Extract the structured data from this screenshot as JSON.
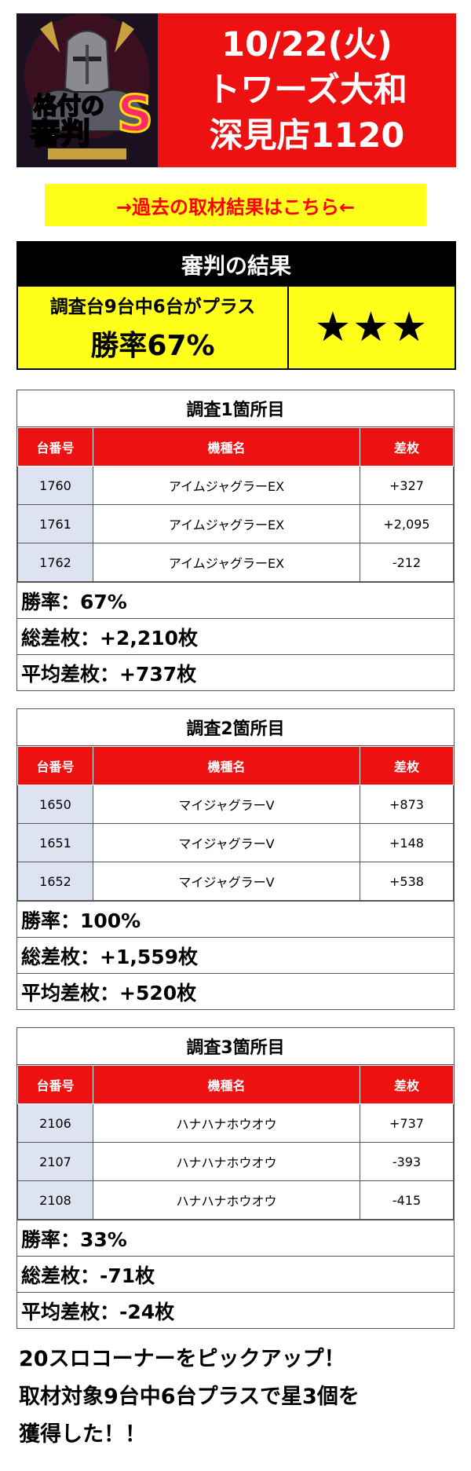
{
  "header": {
    "date": "10/22(火)",
    "store_line1": "トワーズ大和",
    "store_line2": "深見店1120",
    "logo_title_1": "格付の",
    "logo_title_2": "審判",
    "logo_letter": "S"
  },
  "past_link": "→過去の取材結果はこちら←",
  "judgement": {
    "heading": "審判の結果",
    "summary": "調査台9台中6台がプラス",
    "winrate": "勝率67%",
    "stars": "★★★"
  },
  "table_headers": {
    "num": "台番号",
    "model": "機種名",
    "diff": "差枚"
  },
  "surveys": [
    {
      "title": "調査1箇所目",
      "rows": [
        {
          "num": "1760",
          "model": "アイムジャグラーEX",
          "diff": "+327"
        },
        {
          "num": "1761",
          "model": "アイムジャグラーEX",
          "diff": "+2,095"
        },
        {
          "num": "1762",
          "model": "アイムジャグラーEX",
          "diff": "-212"
        }
      ],
      "winrate": "勝率：67%",
      "total": "総差枚：+2,210枚",
      "average": "平均差枚：+737枚"
    },
    {
      "title": "調査2箇所目",
      "rows": [
        {
          "num": "1650",
          "model": "マイジャグラーV",
          "diff": "+873"
        },
        {
          "num": "1651",
          "model": "マイジャグラーV",
          "diff": "+148"
        },
        {
          "num": "1652",
          "model": "マイジャグラーV",
          "diff": "+538"
        }
      ],
      "winrate": "勝率：100%",
      "total": "総差枚：+1,559枚",
      "average": "平均差枚：+520枚"
    },
    {
      "title": "調査3箇所目",
      "rows": [
        {
          "num": "2106",
          "model": "ハナハナホウオウ",
          "diff": "+737"
        },
        {
          "num": "2107",
          "model": "ハナハナホウオウ",
          "diff": "-393"
        },
        {
          "num": "2108",
          "model": "ハナハナホウオウ",
          "diff": "-415"
        }
      ],
      "winrate": "勝率：33%",
      "total": "総差枚：-71枚",
      "average": "平均差枚：-24枚"
    }
  ],
  "footer": {
    "line1": "20スロコーナーをピックアップ！",
    "line2": "取材対象9台中6台プラスで星3個を",
    "line3": "獲得した！！"
  },
  "colors": {
    "red": "#ee1111",
    "yellow": "#ffff1a",
    "row_blue": "#dde3f0"
  }
}
